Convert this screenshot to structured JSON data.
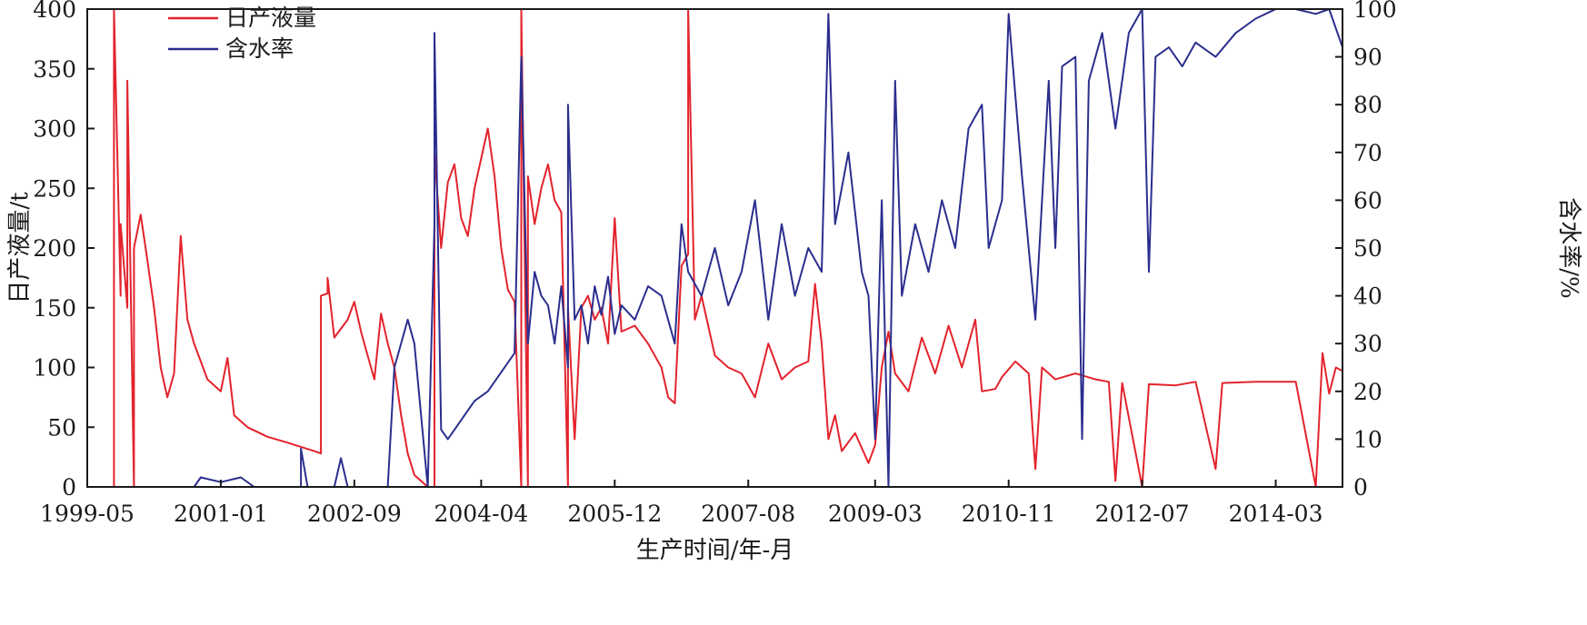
{
  "chart_data": {
    "type": "line",
    "xlabel": "生产时间/年-月",
    "ylabel_left": "日产液量/t",
    "ylabel_right": "含水率/%",
    "x_ticks": [
      "1999-05",
      "2001-01",
      "2002-09",
      "2004-04",
      "2005-12",
      "2007-08",
      "2009-03",
      "2010-11",
      "2012-07",
      "2014-03"
    ],
    "x_range": [
      "1999-05",
      "2015-01"
    ],
    "y_left_ticks": [
      0,
      50,
      100,
      150,
      200,
      250,
      300,
      350,
      400
    ],
    "y_left_range": [
      0,
      400
    ],
    "y_right_ticks": [
      0,
      10,
      20,
      30,
      40,
      50,
      60,
      70,
      80,
      90,
      100
    ],
    "y_right_range": [
      0,
      100
    ],
    "legend_position": "top-left",
    "grid": false,
    "series": [
      {
        "name": "日产液量",
        "axis": "left",
        "color": "#e3232c",
        "points": [
          [
            "1999-05",
            0
          ],
          [
            "1999-09",
            0
          ],
          [
            "1999-09",
            400
          ],
          [
            "1999-10",
            160
          ],
          [
            "1999-10",
            220
          ],
          [
            "1999-11",
            150
          ],
          [
            "1999-11",
            340
          ],
          [
            "1999-12",
            0
          ],
          [
            "1999-12",
            200
          ],
          [
            "2000-01",
            228
          ],
          [
            "2000-02",
            190
          ],
          [
            "2000-03",
            150
          ],
          [
            "2000-04",
            100
          ],
          [
            "2000-05",
            75
          ],
          [
            "2000-06",
            95
          ],
          [
            "2000-07",
            210
          ],
          [
            "2000-08",
            140
          ],
          [
            "2000-09",
            120
          ],
          [
            "2000-10",
            105
          ],
          [
            "2000-11",
            90
          ],
          [
            "2001-01",
            80
          ],
          [
            "2001-02",
            108
          ],
          [
            "2001-03",
            60
          ],
          [
            "2001-05",
            50
          ],
          [
            "2001-08",
            42
          ],
          [
            "2001-11",
            37
          ],
          [
            "2002-03",
            30
          ],
          [
            "2002-04",
            28
          ],
          [
            "2002-04",
            160
          ],
          [
            "2002-05",
            162
          ],
          [
            "2002-05",
            175
          ],
          [
            "2002-06",
            125
          ],
          [
            "2002-08",
            140
          ],
          [
            "2002-09",
            155
          ],
          [
            "2002-10",
            130
          ],
          [
            "2002-11",
            110
          ],
          [
            "2002-12",
            90
          ],
          [
            "2003-01",
            145
          ],
          [
            "2003-02",
            120
          ],
          [
            "2003-03",
            100
          ],
          [
            "2003-04",
            60
          ],
          [
            "2003-05",
            28
          ],
          [
            "2003-06",
            10
          ],
          [
            "2003-08",
            0
          ],
          [
            "2003-09",
            0
          ],
          [
            "2003-09",
            280
          ],
          [
            "2003-10",
            200
          ],
          [
            "2003-11",
            255
          ],
          [
            "2003-12",
            270
          ],
          [
            "2004-01",
            225
          ],
          [
            "2004-02",
            210
          ],
          [
            "2004-03",
            250
          ],
          [
            "2004-04",
            275
          ],
          [
            "2004-05",
            300
          ],
          [
            "2004-06",
            260
          ],
          [
            "2004-07",
            200
          ],
          [
            "2004-08",
            165
          ],
          [
            "2004-09",
            155
          ],
          [
            "2004-10",
            0
          ],
          [
            "2004-10",
            400
          ],
          [
            "2004-11",
            0
          ],
          [
            "2004-11",
            260
          ],
          [
            "2004-12",
            220
          ],
          [
            "2005-01",
            250
          ],
          [
            "2005-02",
            270
          ],
          [
            "2005-03",
            240
          ],
          [
            "2005-04",
            230
          ],
          [
            "2005-05",
            0
          ],
          [
            "2005-05",
            150
          ],
          [
            "2005-06",
            40
          ],
          [
            "2005-07",
            150
          ],
          [
            "2005-08",
            160
          ],
          [
            "2005-09",
            140
          ],
          [
            "2005-10",
            150
          ],
          [
            "2005-11",
            120
          ],
          [
            "2005-12",
            225
          ],
          [
            "2006-01",
            130
          ],
          [
            "2006-03",
            135
          ],
          [
            "2006-05",
            120
          ],
          [
            "2006-07",
            100
          ],
          [
            "2006-08",
            75
          ],
          [
            "2006-09",
            70
          ],
          [
            "2006-10",
            185
          ],
          [
            "2006-11",
            195
          ],
          [
            "2006-11",
            400
          ],
          [
            "2006-12",
            140
          ],
          [
            "2007-01",
            160
          ],
          [
            "2007-03",
            110
          ],
          [
            "2007-05",
            100
          ],
          [
            "2007-07",
            95
          ],
          [
            "2007-09",
            75
          ],
          [
            "2007-11",
            120
          ],
          [
            "2008-01",
            90
          ],
          [
            "2008-03",
            100
          ],
          [
            "2008-05",
            105
          ],
          [
            "2008-06",
            170
          ],
          [
            "2008-07",
            120
          ],
          [
            "2008-08",
            40
          ],
          [
            "2008-09",
            60
          ],
          [
            "2008-10",
            30
          ],
          [
            "2008-12",
            45
          ],
          [
            "2009-02",
            20
          ],
          [
            "2009-03",
            35
          ],
          [
            "2009-04",
            100
          ],
          [
            "2009-05",
            130
          ],
          [
            "2009-06",
            95
          ],
          [
            "2009-08",
            80
          ],
          [
            "2009-10",
            125
          ],
          [
            "2009-12",
            95
          ],
          [
            "2010-02",
            135
          ],
          [
            "2010-04",
            100
          ],
          [
            "2010-06",
            140
          ],
          [
            "2010-07",
            80
          ],
          [
            "2010-09",
            82
          ],
          [
            "2010-10",
            92
          ],
          [
            "2010-12",
            105
          ],
          [
            "2011-02",
            95
          ],
          [
            "2011-03",
            15
          ],
          [
            "2011-04",
            100
          ],
          [
            "2011-06",
            90
          ],
          [
            "2011-09",
            95
          ],
          [
            "2011-12",
            90
          ],
          [
            "2012-02",
            88
          ],
          [
            "2012-03",
            5
          ],
          [
            "2012-04",
            87
          ],
          [
            "2012-07",
            0
          ],
          [
            "2012-08",
            86
          ],
          [
            "2012-12",
            85
          ],
          [
            "2013-03",
            88
          ],
          [
            "2013-06",
            15
          ],
          [
            "2013-07",
            87
          ],
          [
            "2013-12",
            88
          ],
          [
            "2014-06",
            88
          ],
          [
            "2014-09",
            0
          ],
          [
            "2014-10",
            112
          ],
          [
            "2014-11",
            78
          ],
          [
            "2014-12",
            100
          ],
          [
            "2015-01",
            97
          ]
        ]
      },
      {
        "name": "含水率",
        "axis": "right",
        "color": "#2b2e8e",
        "points": [
          [
            "2000-09",
            0
          ],
          [
            "2000-10",
            2
          ],
          [
            "2001-01",
            1
          ],
          [
            "2001-04",
            2
          ],
          [
            "2001-06",
            0
          ],
          [
            "2001-09",
            0
          ],
          [
            "2002-01",
            0
          ],
          [
            "2002-01",
            8
          ],
          [
            "2002-02",
            0
          ],
          [
            "2002-06",
            0
          ],
          [
            "2002-07",
            6
          ],
          [
            "2002-08",
            0
          ],
          [
            "2003-02",
            0
          ],
          [
            "2003-03",
            25
          ],
          [
            "2003-05",
            35
          ],
          [
            "2003-06",
            30
          ],
          [
            "2003-08",
            0
          ],
          [
            "2003-09",
            55
          ],
          [
            "2003-09",
            95
          ],
          [
            "2003-10",
            12
          ],
          [
            "2003-11",
            10
          ],
          [
            "2004-01",
            14
          ],
          [
            "2004-03",
            18
          ],
          [
            "2004-05",
            20
          ],
          [
            "2004-07",
            24
          ],
          [
            "2004-09",
            28
          ],
          [
            "2004-10",
            90
          ],
          [
            "2004-11",
            30
          ],
          [
            "2004-12",
            45
          ],
          [
            "2005-01",
            40
          ],
          [
            "2005-02",
            38
          ],
          [
            "2005-03",
            30
          ],
          [
            "2005-04",
            42
          ],
          [
            "2005-05",
            25
          ],
          [
            "2005-05",
            80
          ],
          [
            "2005-06",
            35
          ],
          [
            "2005-07",
            38
          ],
          [
            "2005-08",
            30
          ],
          [
            "2005-09",
            42
          ],
          [
            "2005-10",
            36
          ],
          [
            "2005-11",
            44
          ],
          [
            "2005-12",
            32
          ],
          [
            "2006-01",
            38
          ],
          [
            "2006-03",
            35
          ],
          [
            "2006-05",
            42
          ],
          [
            "2006-07",
            40
          ],
          [
            "2006-09",
            30
          ],
          [
            "2006-10",
            55
          ],
          [
            "2006-11",
            45
          ],
          [
            "2007-01",
            40
          ],
          [
            "2007-03",
            50
          ],
          [
            "2007-05",
            38
          ],
          [
            "2007-07",
            45
          ],
          [
            "2007-09",
            60
          ],
          [
            "2007-11",
            35
          ],
          [
            "2008-01",
            55
          ],
          [
            "2008-03",
            40
          ],
          [
            "2008-05",
            50
          ],
          [
            "2008-07",
            45
          ],
          [
            "2008-08",
            99
          ],
          [
            "2008-09",
            55
          ],
          [
            "2008-11",
            70
          ],
          [
            "2009-01",
            45
          ],
          [
            "2009-02",
            40
          ],
          [
            "2009-03",
            10
          ],
          [
            "2009-04",
            60
          ],
          [
            "2009-05",
            0
          ],
          [
            "2009-06",
            85
          ],
          [
            "2009-07",
            40
          ],
          [
            "2009-09",
            55
          ],
          [
            "2009-11",
            45
          ],
          [
            "2010-01",
            60
          ],
          [
            "2010-03",
            50
          ],
          [
            "2010-05",
            75
          ],
          [
            "2010-07",
            80
          ],
          [
            "2010-08",
            50
          ],
          [
            "2010-10",
            60
          ],
          [
            "2010-11",
            99
          ],
          [
            "2011-01",
            65
          ],
          [
            "2011-03",
            35
          ],
          [
            "2011-05",
            85
          ],
          [
            "2011-06",
            50
          ],
          [
            "2011-07",
            88
          ],
          [
            "2011-09",
            90
          ],
          [
            "2011-10",
            10
          ],
          [
            "2011-11",
            85
          ],
          [
            "2012-01",
            95
          ],
          [
            "2012-03",
            75
          ],
          [
            "2012-05",
            95
          ],
          [
            "2012-07",
            100
          ],
          [
            "2012-08",
            45
          ],
          [
            "2012-09",
            90
          ],
          [
            "2012-11",
            92
          ],
          [
            "2013-01",
            88
          ],
          [
            "2013-03",
            93
          ],
          [
            "2013-06",
            90
          ],
          [
            "2013-09",
            95
          ],
          [
            "2013-12",
            98
          ],
          [
            "2014-03",
            100
          ],
          [
            "2014-06",
            100
          ],
          [
            "2014-09",
            99
          ],
          [
            "2014-11",
            100
          ],
          [
            "2015-01",
            92
          ]
        ]
      }
    ]
  }
}
